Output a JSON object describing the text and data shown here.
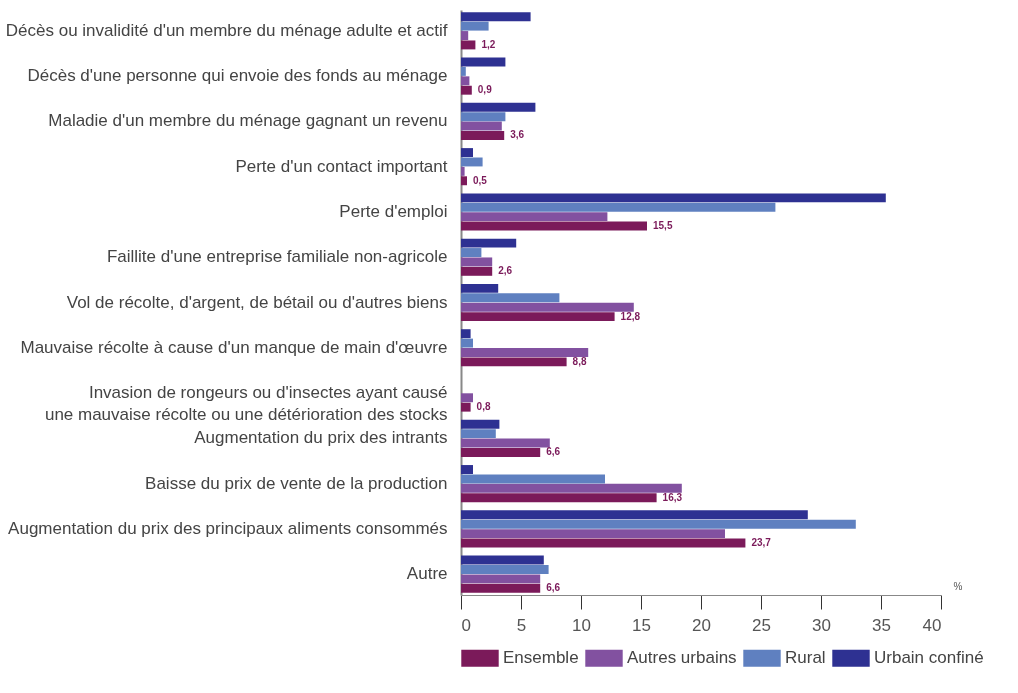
{
  "chart_data": {
    "type": "bar",
    "orientation": "horizontal",
    "xlabel": "%",
    "categories": [
      "Décès ou invalidité d'un membre du ménage adulte et actif",
      "Décès d'une personne qui envoie des fonds au ménage",
      "Maladie d'un membre du ménage gagnant un revenu",
      "Perte d'un contact important",
      "Perte d'emploi",
      "Faillite d'une entreprise familiale non-agricole",
      "Vol de récolte, d'argent, de bétail ou d'autres biens",
      "Mauvaise récolte à cause d'un manque de main d'œuvre",
      "Invasion de rongeurs ou d'insectes ayant causé\nune mauvaise récolte ou une détérioration des stocks",
      "Augmentation du prix des intrants",
      "Baisse du prix de vente de la production",
      "Augmentation du prix des principaux aliments consommés",
      "Autre"
    ],
    "series": [
      {
        "name": "Ensemble",
        "color": "#7b1a5a",
        "values": [
          1.2,
          0.9,
          3.6,
          0.5,
          15.5,
          2.6,
          12.8,
          8.8,
          0.8,
          6.6,
          16.3,
          23.7,
          6.6
        ],
        "value_labels": [
          "1,2",
          "0,9",
          "3,6",
          "0,5",
          "15,5",
          "2,6",
          "12,8",
          "8,8",
          "0,8",
          "6,6",
          "16,3",
          "23,7",
          "6,6"
        ]
      },
      {
        "name": "Autres urbains",
        "color": "#8251a0",
        "values": [
          0.6,
          0.7,
          3.4,
          0.3,
          12.2,
          2.6,
          14.4,
          10.6,
          1.0,
          7.4,
          18.4,
          22.0,
          6.6
        ]
      },
      {
        "name": "Rural",
        "color": "#5f80c0",
        "values": [
          2.3,
          0.4,
          3.7,
          1.8,
          26.2,
          1.7,
          8.2,
          1.0,
          0,
          2.9,
          12.0,
          32.9,
          7.3
        ]
      },
      {
        "name": "Urbain confiné",
        "color": "#2e3192",
        "values": [
          5.8,
          3.7,
          6.2,
          1.0,
          35.4,
          4.6,
          3.1,
          0.8,
          0,
          3.2,
          1.0,
          28.9,
          6.9
        ]
      }
    ],
    "xlim": [
      0,
      40
    ],
    "xticks": [
      0,
      5,
      10,
      15,
      20,
      25,
      30,
      35,
      40
    ],
    "grid": false,
    "legend": "bottom"
  }
}
